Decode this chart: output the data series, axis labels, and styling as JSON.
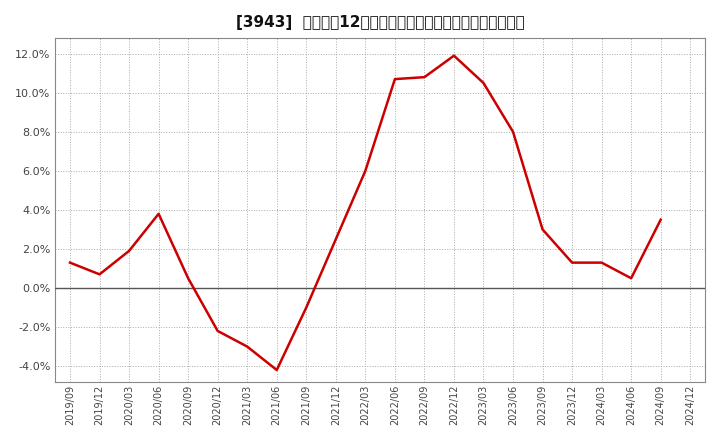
{
  "title": "[3943]  売上高の12か月移動合計の対前年同期増減率の推移",
  "line_color": "#cc0000",
  "background_color": "#ffffff",
  "plot_bg_color": "#ffffff",
  "grid_color": "#aaaaaa",
  "ylim": [
    -0.048,
    0.128
  ],
  "yticks": [
    -0.04,
    -0.02,
    0.0,
    0.02,
    0.04,
    0.06,
    0.08,
    0.1,
    0.12
  ],
  "dates": [
    "2019/09",
    "2019/12",
    "2020/03",
    "2020/06",
    "2020/09",
    "2020/12",
    "2021/03",
    "2021/06",
    "2021/09",
    "2021/12",
    "2022/03",
    "2022/06",
    "2022/09",
    "2022/12",
    "2023/03",
    "2023/06",
    "2023/09",
    "2023/12",
    "2024/03",
    "2024/06",
    "2024/09",
    "2024/12"
  ],
  "values": [
    0.013,
    0.007,
    0.019,
    0.038,
    0.005,
    -0.022,
    -0.03,
    -0.042,
    -0.01,
    0.025,
    0.06,
    0.107,
    0.108,
    0.119,
    0.105,
    0.08,
    0.03,
    0.013,
    0.013,
    0.005,
    0.035,
    null
  ],
  "zero_line_color": "#555555",
  "border_color": "#888888",
  "title_fontsize": 11,
  "tick_fontsize": 8,
  "xtick_fontsize": 7
}
